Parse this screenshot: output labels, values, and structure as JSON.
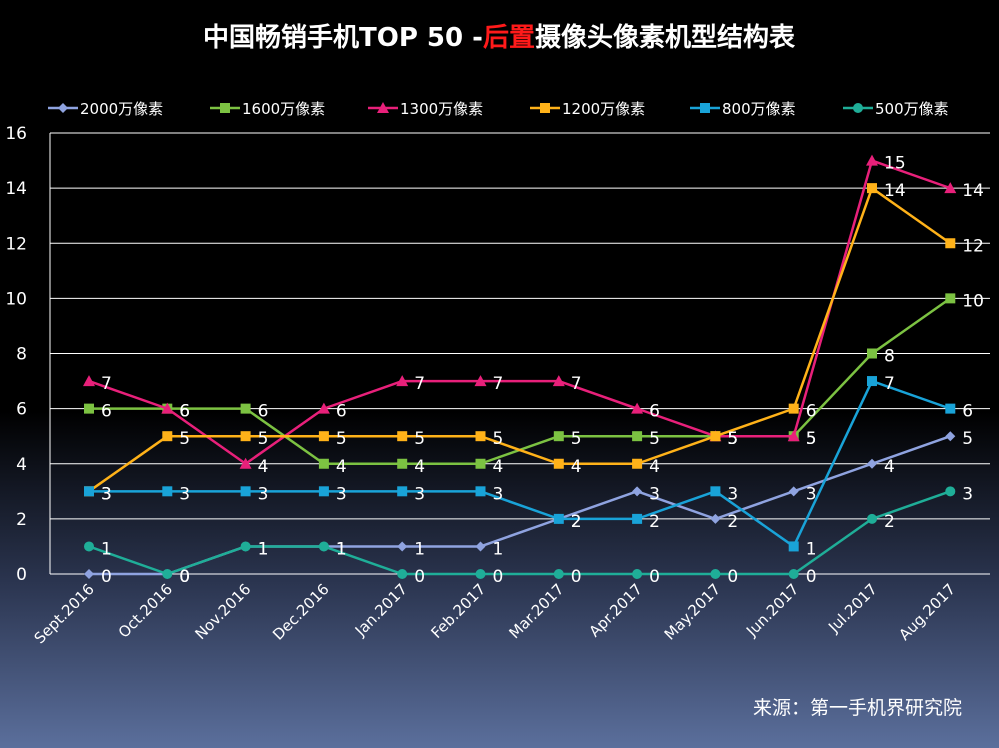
{
  "chart_data": {
    "type": "line",
    "title_prefix": "中国畅销手机TOP 50 -",
    "title_highlight": "后置",
    "title_suffix": "摄像头像素机型结构表",
    "categories": [
      "Sept.2016",
      "Oct.2016",
      "Nov.2016",
      "Dec.2016",
      "Jan.2017",
      "Feb.2017",
      "Mar.2017",
      "Apr.2017",
      "May.2017",
      "Jun.2017",
      "Jul.2017",
      "Aug.2017"
    ],
    "ylim": [
      0,
      16
    ],
    "yticks": [
      0,
      2,
      4,
      6,
      8,
      10,
      12,
      14,
      16
    ],
    "grid": true,
    "legend_position": "top",
    "series": [
      {
        "name": "2000万像素",
        "color": "#8fa3e0",
        "marker": "diamond",
        "values": [
          0,
          0,
          1,
          1,
          1,
          1,
          2,
          3,
          2,
          3,
          4,
          5
        ]
      },
      {
        "name": "1600万像素",
        "color": "#7cc242",
        "marker": "square",
        "values": [
          6,
          6,
          6,
          4,
          4,
          4,
          5,
          5,
          5,
          5,
          8,
          10
        ]
      },
      {
        "name": "1300万像素",
        "color": "#e8207a",
        "marker": "triangle",
        "values": [
          7,
          6,
          4,
          6,
          7,
          7,
          7,
          6,
          5,
          5,
          15,
          14
        ]
      },
      {
        "name": "1200万像素",
        "color": "#ffb219",
        "marker": "square",
        "values": [
          3,
          5,
          5,
          5,
          5,
          5,
          4,
          4,
          5,
          6,
          14,
          12
        ]
      },
      {
        "name": "800万像素",
        "color": "#19a3d8",
        "marker": "square",
        "values": [
          3,
          3,
          3,
          3,
          3,
          3,
          2,
          2,
          3,
          1,
          7,
          6
        ]
      },
      {
        "name": "500万像素",
        "color": "#1fae98",
        "marker": "circle",
        "values": [
          1,
          0,
          1,
          1,
          0,
          0,
          0,
          0,
          0,
          0,
          2,
          3
        ]
      }
    ]
  },
  "source": "来源：第一手机界研究院",
  "colors": {
    "grid": "#ffffff",
    "highlight": "#ff1a1a"
  }
}
